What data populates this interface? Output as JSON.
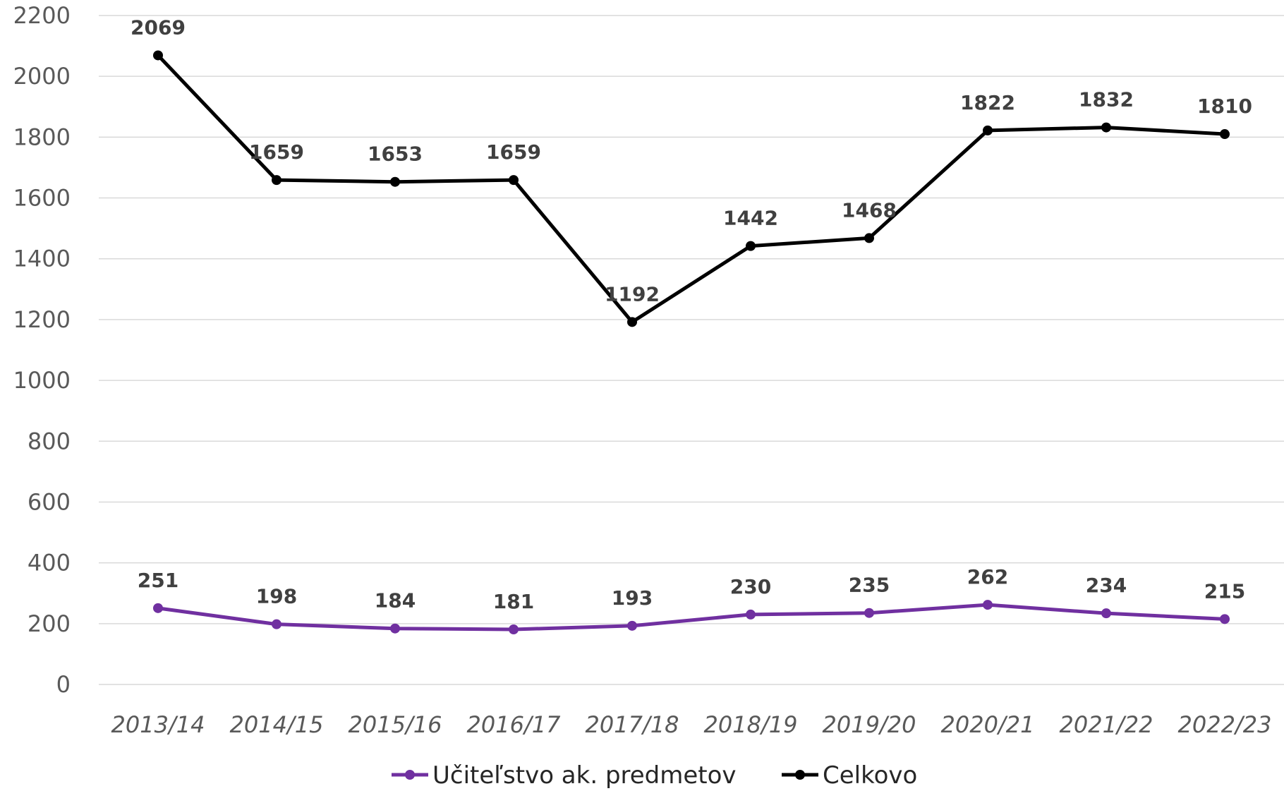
{
  "chart_data": {
    "type": "line",
    "categories": [
      "2013/14",
      "2014/15",
      "2015/16",
      "2016/17",
      "2017/18",
      "2018/19",
      "2019/20",
      "2020/21",
      "2021/22",
      "2022/23"
    ],
    "series": [
      {
        "name": "Učiteľstvo ak. predmetov",
        "color": "#7030a0",
        "values": [
          251,
          198,
          184,
          181,
          193,
          230,
          235,
          262,
          234,
          215
        ],
        "labels": [
          "251",
          "198",
          "184",
          "181",
          "193",
          "230",
          "235",
          "262",
          "234",
          "215"
        ]
      },
      {
        "name": "Celkovo",
        "color": "#000000",
        "values": [
          2069,
          1659,
          1653,
          1659,
          1192,
          1442,
          1468,
          1822,
          1832,
          1810
        ],
        "labels": [
          "2069",
          "1659",
          "1653",
          "1659",
          "1192",
          "1442",
          "1468",
          "1822",
          "1832",
          "1810"
        ]
      }
    ],
    "yticks": [
      "0",
      "200",
      "400",
      "600",
      "800",
      "1000",
      "1200",
      "1400",
      "1600",
      "1800",
      "2000",
      "2200"
    ],
    "ylim": [
      0,
      2200
    ],
    "grid": true,
    "legend_position": "bottom"
  }
}
